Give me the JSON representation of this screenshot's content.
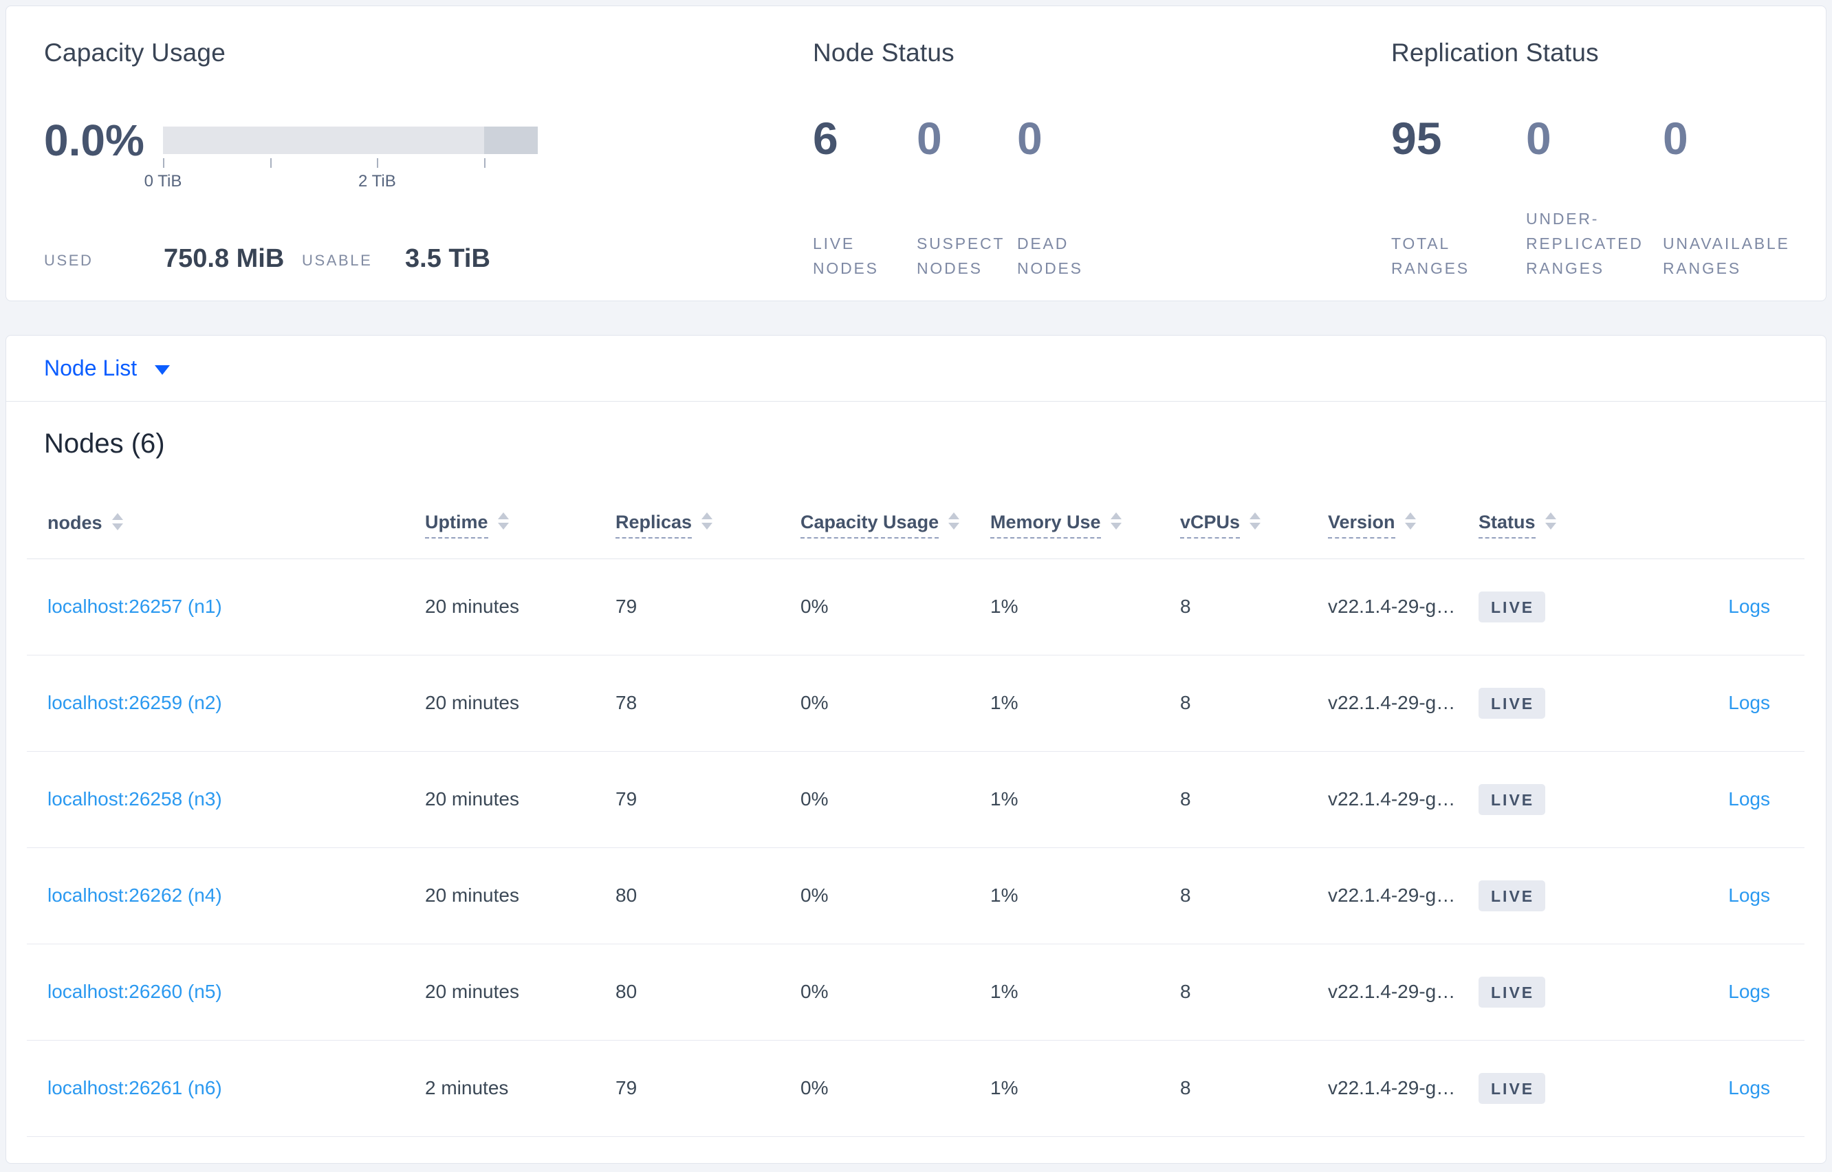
{
  "summary": {
    "capacity": {
      "title": "Capacity Usage",
      "percent": "0.0%",
      "bar": {
        "total_tib": 3.5,
        "tick_positions_pct": [
          0,
          28.57,
          57.14,
          85.71
        ],
        "tick_labels": [
          "0 TiB",
          "2 TiB"
        ],
        "dark_segment_start_pct": 85.71,
        "bar_light_color": "#e3e5ea",
        "bar_dark_color": "#cdd2da"
      },
      "used_label": "USED",
      "used_value": "750.8 MiB",
      "usable_label": "USABLE",
      "usable_value": "3.5 TiB"
    },
    "node_status": {
      "title": "Node Status",
      "stats": [
        {
          "value": "6",
          "label_lines": [
            "LIVE",
            "NODES"
          ]
        },
        {
          "value": "0",
          "label_lines": [
            "SUSPECT",
            "NODES"
          ]
        },
        {
          "value": "0",
          "label_lines": [
            "DEAD",
            "NODES"
          ]
        }
      ]
    },
    "replication": {
      "title": "Replication Status",
      "stats": [
        {
          "value": "95",
          "label_lines": [
            "TOTAL",
            "RANGES"
          ]
        },
        {
          "value": "0",
          "label_lines": [
            "UNDER-",
            "REPLICATED",
            "RANGES"
          ]
        },
        {
          "value": "0",
          "label_lines": [
            "UNAVAILABLE",
            "RANGES"
          ]
        }
      ]
    }
  },
  "node_list": {
    "label": "Node List"
  },
  "nodes_table": {
    "heading": "Nodes (6)",
    "columns": [
      {
        "key": "node",
        "label": "nodes",
        "dotted": false,
        "sortable": true,
        "type": "link"
      },
      {
        "key": "uptime",
        "label": "Uptime",
        "dotted": true,
        "sortable": true,
        "type": "text"
      },
      {
        "key": "replicas",
        "label": "Replicas",
        "dotted": true,
        "sortable": true,
        "type": "text"
      },
      {
        "key": "capacity",
        "label": "Capacity Usage",
        "dotted": true,
        "sortable": true,
        "type": "text"
      },
      {
        "key": "memory",
        "label": "Memory Use",
        "dotted": true,
        "sortable": true,
        "type": "text"
      },
      {
        "key": "vcpus",
        "label": "vCPUs",
        "dotted": true,
        "sortable": true,
        "type": "text"
      },
      {
        "key": "version",
        "label": "Version",
        "dotted": true,
        "sortable": true,
        "type": "text"
      },
      {
        "key": "status",
        "label": "Status",
        "dotted": true,
        "sortable": true,
        "type": "badge"
      },
      {
        "key": "logs",
        "label": "",
        "dotted": false,
        "sortable": false,
        "type": "link",
        "align": "right"
      }
    ],
    "rows": [
      {
        "node": "localhost:26257 (n1)",
        "uptime": "20 minutes",
        "replicas": "79",
        "capacity": "0%",
        "memory": "1%",
        "vcpus": "8",
        "version": "v22.1.4-29-g…",
        "status": "LIVE",
        "logs": "Logs"
      },
      {
        "node": "localhost:26259 (n2)",
        "uptime": "20 minutes",
        "replicas": "78",
        "capacity": "0%",
        "memory": "1%",
        "vcpus": "8",
        "version": "v22.1.4-29-g…",
        "status": "LIVE",
        "logs": "Logs"
      },
      {
        "node": "localhost:26258 (n3)",
        "uptime": "20 minutes",
        "replicas": "79",
        "capacity": "0%",
        "memory": "1%",
        "vcpus": "8",
        "version": "v22.1.4-29-g…",
        "status": "LIVE",
        "logs": "Logs"
      },
      {
        "node": "localhost:26262 (n4)",
        "uptime": "20 minutes",
        "replicas": "80",
        "capacity": "0%",
        "memory": "1%",
        "vcpus": "8",
        "version": "v22.1.4-29-g…",
        "status": "LIVE",
        "logs": "Logs"
      },
      {
        "node": "localhost:26260 (n5)",
        "uptime": "20 minutes",
        "replicas": "80",
        "capacity": "0%",
        "memory": "1%",
        "vcpus": "8",
        "version": "v22.1.4-29-g…",
        "status": "LIVE",
        "logs": "Logs"
      },
      {
        "node": "localhost:26261 (n6)",
        "uptime": "2 minutes",
        "replicas": "79",
        "capacity": "0%",
        "memory": "1%",
        "vcpus": "8",
        "version": "v22.1.4-29-g…",
        "status": "LIVE",
        "logs": "Logs"
      }
    ]
  },
  "colors": {
    "page_background": "#f2f4f8",
    "accent_blue": "#0b5dff",
    "link_blue": "#2b99f0",
    "stat_dark": "#46546e",
    "stat_muted": "#707e9e",
    "badge_background": "#e7eaf1"
  }
}
